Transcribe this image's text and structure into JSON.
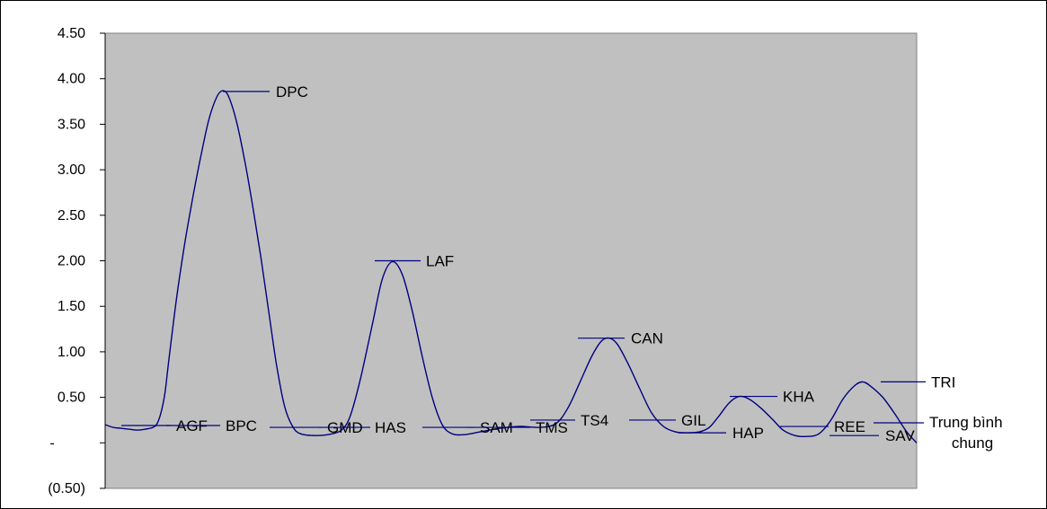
{
  "chart_data": {
    "type": "line",
    "ylim": [
      -0.5,
      4.5
    ],
    "yticks": [
      {
        "value": 4.5,
        "label": "4.50"
      },
      {
        "value": 4.0,
        "label": "4.00"
      },
      {
        "value": 3.5,
        "label": "3.50"
      },
      {
        "value": 3.0,
        "label": "3.00"
      },
      {
        "value": 2.5,
        "label": "2.50"
      },
      {
        "value": 2.0,
        "label": "2.00"
      },
      {
        "value": 1.5,
        "label": "1.50"
      },
      {
        "value": 1.0,
        "label": "1.00"
      },
      {
        "value": 0.5,
        "label": "0.50"
      },
      {
        "value": 0.0,
        "label": "-"
      },
      {
        "value": -0.5,
        "label": "(0.50)"
      }
    ],
    "grid": false,
    "colors": {
      "line": "#000080",
      "plot_bg": "#c0c0c0",
      "page_bg": "#ffffff"
    },
    "points": [
      {
        "label": "AGF",
        "value": 0.19
      },
      {
        "label": "BPC",
        "value": 0.19
      },
      {
        "label": "DPC",
        "value": 3.86
      },
      {
        "label": "GMD",
        "value": 0.17
      },
      {
        "label": "HAS",
        "value": 0.17
      },
      {
        "label": "LAF",
        "value": 2.0
      },
      {
        "label": "SAM",
        "value": 0.17
      },
      {
        "label": "TMS",
        "value": 0.17
      },
      {
        "label": "CAN",
        "value": 1.15
      },
      {
        "label": "TS4",
        "value": 0.25
      },
      {
        "label": "GIL",
        "value": 0.25
      },
      {
        "label": "HAP",
        "value": 0.11
      },
      {
        "label": "KHA",
        "value": 0.51
      },
      {
        "label": "REE",
        "value": 0.18
      },
      {
        "label": "SAV",
        "value": 0.08
      },
      {
        "label": "TRI",
        "value": 0.67
      },
      {
        "label": "Trung bình chung",
        "value": 0.22
      }
    ],
    "curve": [
      [
        0,
        0.2
      ],
      [
        0.2,
        0.17
      ],
      [
        0.4,
        0.16
      ],
      [
        0.6,
        0.15
      ],
      [
        0.8,
        0.14
      ],
      [
        1.0,
        0.15
      ],
      [
        1.2,
        0.17
      ],
      [
        1.3,
        0.21
      ],
      [
        1.4,
        0.33
      ],
      [
        1.5,
        0.55
      ],
      [
        1.6,
        0.92
      ],
      [
        1.8,
        1.62
      ],
      [
        2.0,
        2.2
      ],
      [
        2.2,
        2.7
      ],
      [
        2.4,
        3.15
      ],
      [
        2.6,
        3.55
      ],
      [
        2.8,
        3.8
      ],
      [
        2.95,
        3.87
      ],
      [
        3.1,
        3.8
      ],
      [
        3.3,
        3.52
      ],
      [
        3.5,
        3.1
      ],
      [
        3.7,
        2.6
      ],
      [
        3.9,
        2.05
      ],
      [
        4.1,
        1.45
      ],
      [
        4.3,
        0.85
      ],
      [
        4.5,
        0.4
      ],
      [
        4.7,
        0.18
      ],
      [
        4.9,
        0.1
      ],
      [
        5.3,
        0.08
      ],
      [
        5.7,
        0.1
      ],
      [
        5.95,
        0.15
      ],
      [
        6.15,
        0.3
      ],
      [
        6.4,
        0.7
      ],
      [
        6.7,
        1.3
      ],
      [
        6.95,
        1.8
      ],
      [
        7.2,
        1.99
      ],
      [
        7.45,
        1.85
      ],
      [
        7.7,
        1.45
      ],
      [
        7.95,
        0.95
      ],
      [
        8.2,
        0.5
      ],
      [
        8.45,
        0.2
      ],
      [
        8.7,
        0.1
      ],
      [
        9.0,
        0.09
      ],
      [
        9.4,
        0.12
      ],
      [
        9.9,
        0.16
      ],
      [
        10.4,
        0.18
      ],
      [
        10.9,
        0.17
      ],
      [
        11.3,
        0.21
      ],
      [
        11.6,
        0.38
      ],
      [
        11.9,
        0.66
      ],
      [
        12.2,
        0.95
      ],
      [
        12.45,
        1.12
      ],
      [
        12.65,
        1.15
      ],
      [
        12.85,
        1.08
      ],
      [
        13.1,
        0.88
      ],
      [
        13.4,
        0.6
      ],
      [
        13.7,
        0.33
      ],
      [
        14.0,
        0.18
      ],
      [
        14.3,
        0.12
      ],
      [
        14.6,
        0.11
      ],
      [
        14.9,
        0.12
      ],
      [
        15.15,
        0.17
      ],
      [
        15.4,
        0.3
      ],
      [
        15.65,
        0.44
      ],
      [
        15.9,
        0.51
      ],
      [
        16.15,
        0.48
      ],
      [
        16.45,
        0.38
      ],
      [
        16.75,
        0.25
      ],
      [
        17.0,
        0.14
      ],
      [
        17.3,
        0.08
      ],
      [
        17.6,
        0.07
      ],
      [
        17.9,
        0.1
      ],
      [
        18.2,
        0.25
      ],
      [
        18.5,
        0.48
      ],
      [
        18.8,
        0.63
      ],
      [
        19.0,
        0.67
      ],
      [
        19.2,
        0.62
      ],
      [
        19.5,
        0.5
      ],
      [
        19.8,
        0.32
      ],
      [
        20.1,
        0.12
      ],
      [
        20.35,
        0.0
      ]
    ]
  }
}
